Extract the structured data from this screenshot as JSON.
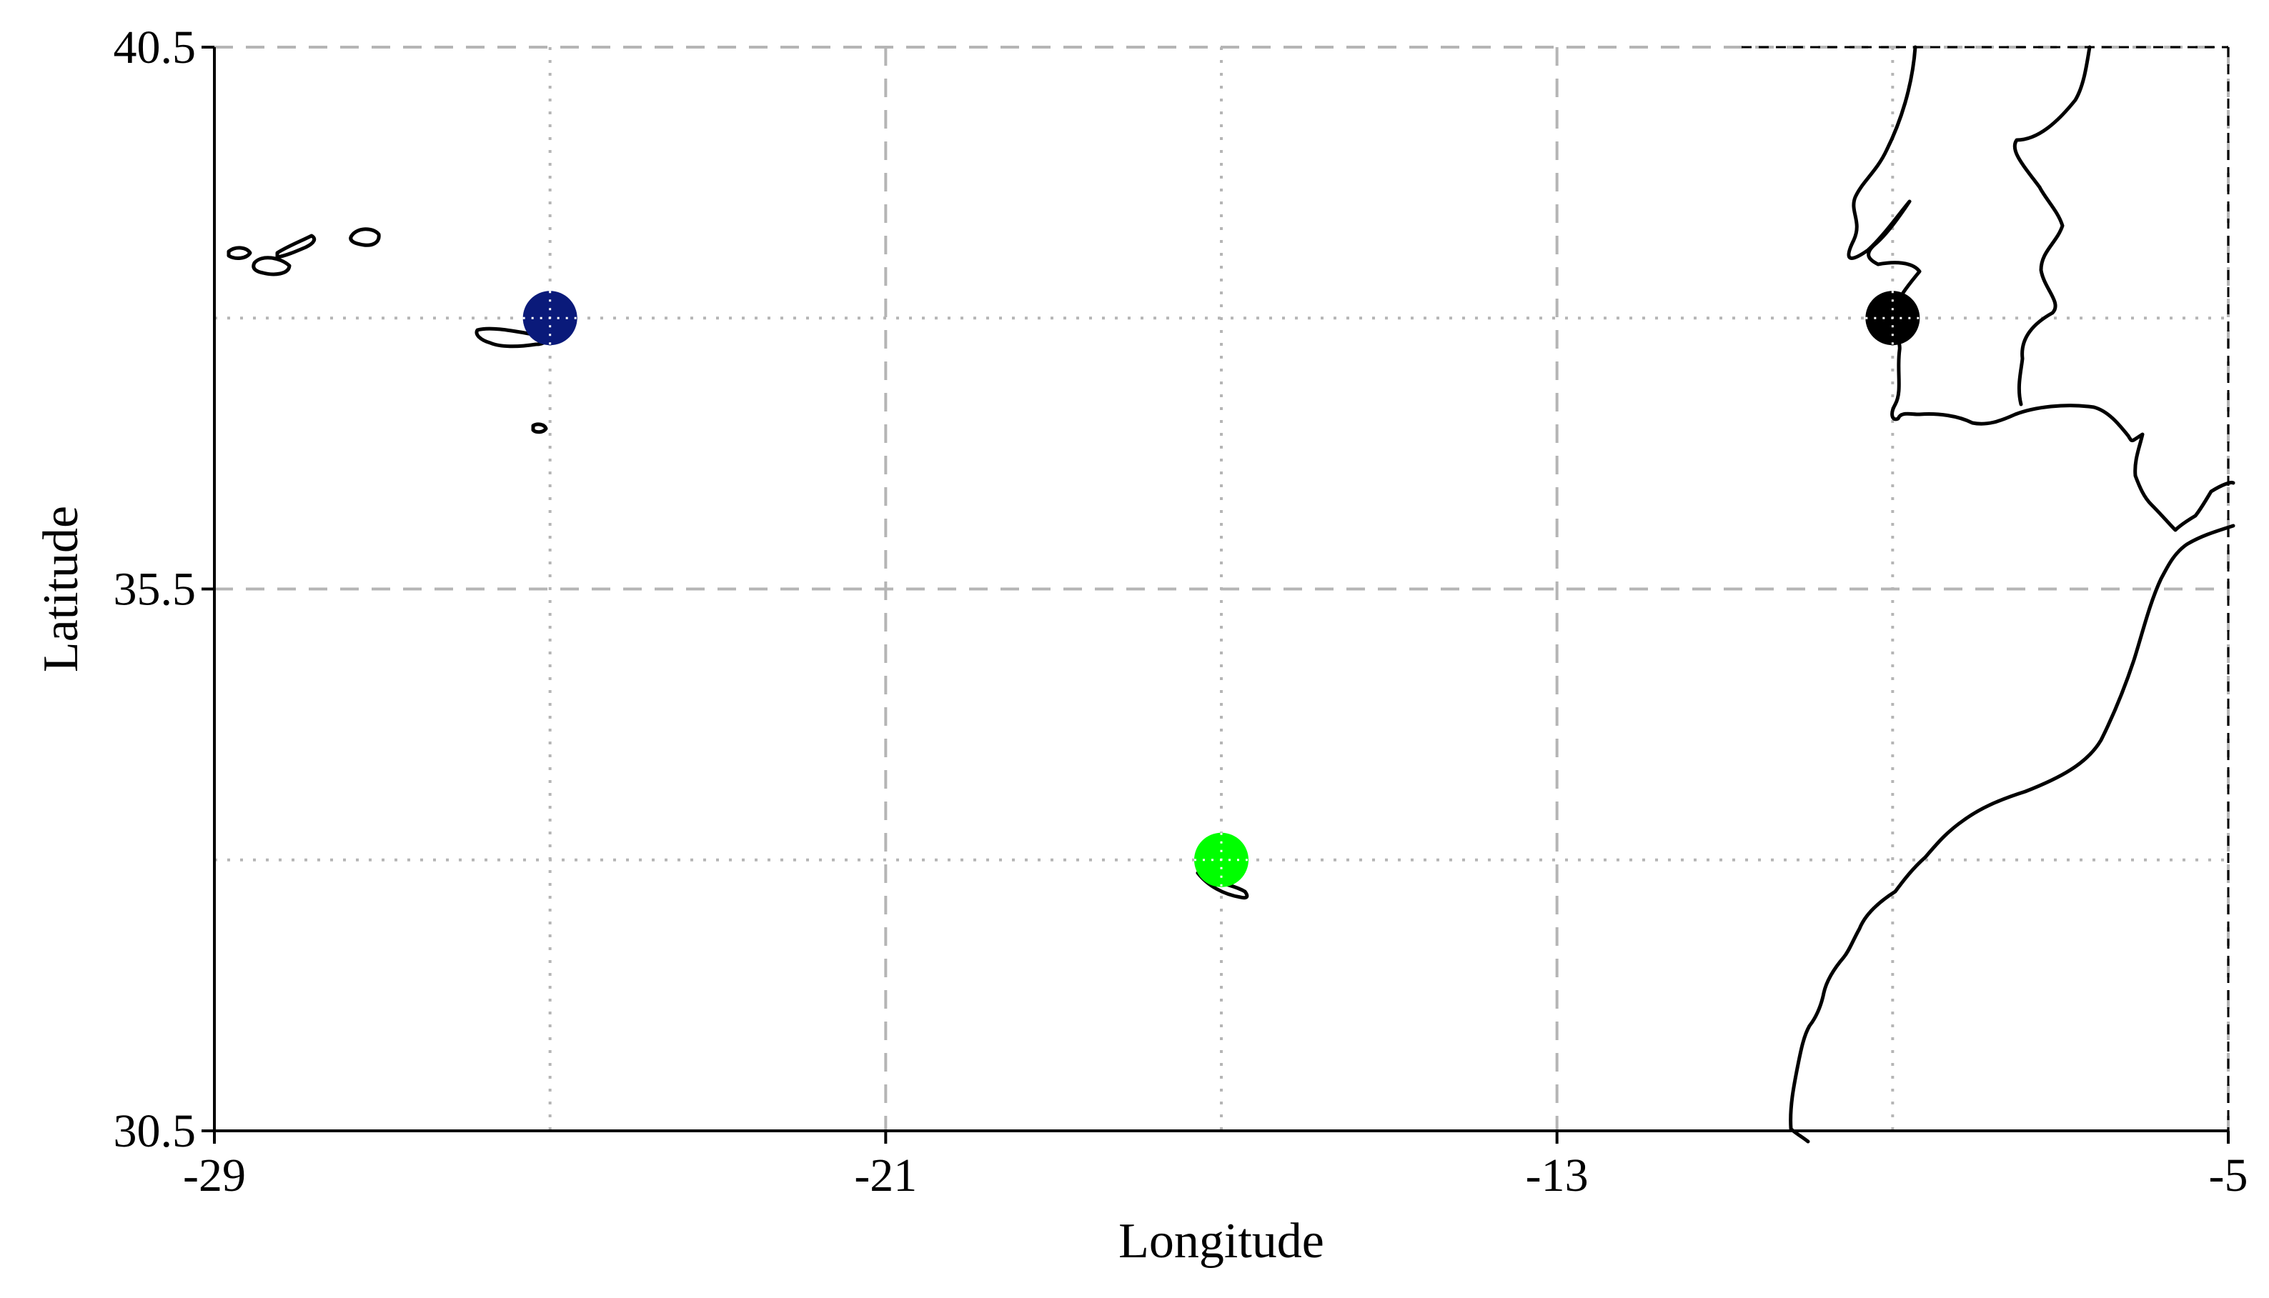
{
  "map": {
    "xlabel": "Longitude",
    "ylabel": "Latitude",
    "xlim": [
      -29,
      -5
    ],
    "ylim": [
      30.5,
      40.5
    ],
    "x_ticks": [
      "-29",
      "-21",
      "-13",
      "-5"
    ],
    "y_ticks": [
      "30.5",
      "35.5",
      "40.5"
    ],
    "minor_grid_lon": [
      -25,
      -17,
      -9
    ],
    "minor_grid_lat": [
      33,
      38
    ],
    "land": [
      "Azores",
      "Madeira",
      "Iberian Peninsula",
      "Northwest Africa"
    ],
    "stations": [
      {
        "lon": -25.0,
        "lat": 38.0,
        "color": "#0a1a7a"
      },
      {
        "lon": -17.0,
        "lat": 33.0,
        "color": "#00ff00"
      },
      {
        "lon": -9.0,
        "lat": 38.0,
        "color": "#000000"
      }
    ]
  }
}
